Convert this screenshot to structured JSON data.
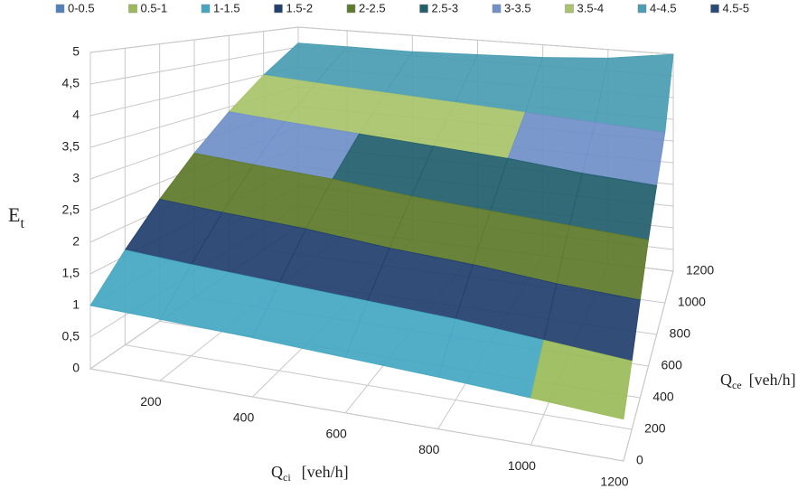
{
  "chart_data": {
    "type": "surface",
    "bands": [
      {
        "name": "0-0.5",
        "color": "#4f81bd",
        "min": 0,
        "max": 0.5
      },
      {
        "name": "0.5-1",
        "color": "#9bbb59",
        "min": 0.5,
        "max": 1
      },
      {
        "name": "1-1.5",
        "color": "#45a8c2",
        "min": 1,
        "max": 1.5
      },
      {
        "name": "1.5-2",
        "color": "#21406e",
        "min": 1.5,
        "max": 2
      },
      {
        "name": "2-2.5",
        "color": "#5e7a2c",
        "min": 2,
        "max": 2.5
      },
      {
        "name": "2.5-3",
        "color": "#225f6d",
        "min": 2.5,
        "max": 3
      },
      {
        "name": "3-3.5",
        "color": "#7090c8",
        "min": 3,
        "max": 3.5
      },
      {
        "name": "3.5-4",
        "color": "#a9c46c",
        "min": 3.5,
        "max": 4
      },
      {
        "name": "4-4.5",
        "color": "#4a9db3",
        "min": 4,
        "max": 4.5
      },
      {
        "name": "4.5-5",
        "color": "#284a75",
        "min": 4.5,
        "max": 5
      }
    ],
    "zlabel": {
      "text": "E",
      "subscript": "t"
    },
    "xlabel": {
      "text": "Q",
      "subscript": "ci",
      "unit": "[veh/h]"
    },
    "ylabel": {
      "text": "Q",
      "subscript": "ce",
      "unit": "[veh/h]"
    },
    "x": [
      50,
      200,
      400,
      600,
      800,
      1000,
      1200
    ],
    "y": [
      0,
      200,
      400,
      600,
      800,
      1000,
      1200
    ],
    "z": [
      [
        1.0,
        0.98,
        0.95,
        0.9,
        0.85,
        0.78,
        0.7
      ],
      [
        1.6,
        1.55,
        1.5,
        1.45,
        1.4,
        1.3,
        1.2
      ],
      [
        2.2,
        2.15,
        2.1,
        2.0,
        1.95,
        1.85,
        1.8
      ],
      [
        2.8,
        2.75,
        2.7,
        2.6,
        2.55,
        2.5,
        2.45
      ],
      [
        3.4,
        3.35,
        3.3,
        3.25,
        3.2,
        3.1,
        3.05
      ],
      [
        4.0,
        3.95,
        3.9,
        3.85,
        3.8,
        3.75,
        3.7
      ],
      [
        4.6,
        4.6,
        4.6,
        4.65,
        4.7,
        4.8,
        5.0
      ]
    ],
    "xlim": [
      50,
      1200
    ],
    "ylim": [
      0,
      1200
    ],
    "zlim": [
      0,
      5
    ],
    "xticks": [
      200,
      400,
      600,
      800,
      1000,
      1200
    ],
    "yticks": [
      0,
      200,
      400,
      600,
      800,
      1000,
      1200
    ],
    "zticks": [
      0,
      {
        "value": 0.5,
        "label": "0,5"
      },
      1,
      {
        "value": 1.5,
        "label": "1,5"
      },
      2,
      {
        "value": 2.5,
        "label": "2,5"
      },
      3,
      {
        "value": 3.5,
        "label": "3,5"
      },
      4,
      {
        "value": 4.5,
        "label": "4,5"
      },
      5
    ],
    "grid": true
  }
}
